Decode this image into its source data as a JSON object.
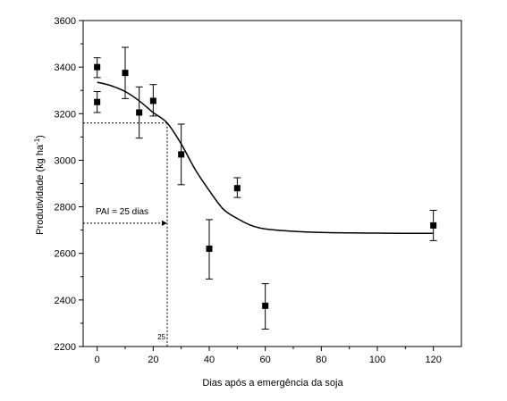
{
  "chart_data": {
    "type": "scatter",
    "xlabel": "Dias após a emergência da soja",
    "ylabel": "Produtividade (kg ha",
    "ylabel_sup": "-1",
    "ylabel_close": ")",
    "xlim": [
      -5,
      130
    ],
    "ylim": [
      2200,
      3600
    ],
    "xticks": [
      0,
      20,
      40,
      60,
      80,
      100,
      120
    ],
    "yticks": [
      2200,
      2400,
      2600,
      2800,
      3000,
      3200,
      3400,
      3600
    ],
    "grid": false,
    "legend": "none",
    "points": [
      {
        "x": 0,
        "y": 3400,
        "err_low": 3355,
        "err_high": 3440
      },
      {
        "x": 0,
        "y": 3250,
        "err_low": 3205,
        "err_high": 3295
      },
      {
        "x": 10,
        "y": 3375,
        "err_low": 3265,
        "err_high": 3485
      },
      {
        "x": 15,
        "y": 3205,
        "err_low": 3095,
        "err_high": 3315
      },
      {
        "x": 20,
        "y": 3255,
        "err_low": 3190,
        "err_high": 3325
      },
      {
        "x": 30,
        "y": 3025,
        "err_low": 2895,
        "err_high": 3155
      },
      {
        "x": 40,
        "y": 2620,
        "err_low": 2490,
        "err_high": 2745
      },
      {
        "x": 50,
        "y": 2880,
        "err_low": 2840,
        "err_high": 2925
      },
      {
        "x": 60,
        "y": 2375,
        "err_low": 2275,
        "err_high": 2470
      },
      {
        "x": 120,
        "y": 2720,
        "err_low": 2655,
        "err_high": 2785
      }
    ],
    "fitted_curve": {
      "x": [
        0,
        5,
        10,
        15,
        20,
        25,
        30,
        35,
        40,
        45,
        50,
        55,
        60,
        70,
        80,
        90,
        100,
        110,
        120
      ],
      "y": [
        3335,
        3320,
        3295,
        3255,
        3205,
        3160,
        3070,
        2960,
        2870,
        2790,
        2750,
        2720,
        2705,
        2695,
        2690,
        2688,
        2687,
        2686,
        2686
      ]
    },
    "reference": {
      "pai_x": 25,
      "pai_y": 3160,
      "pai_label_x": "25",
      "arrow_y": 2730,
      "arrow_label": "PAI = 25 dias"
    },
    "colors": {
      "marks": "#000000",
      "background": "#ffffff"
    }
  }
}
